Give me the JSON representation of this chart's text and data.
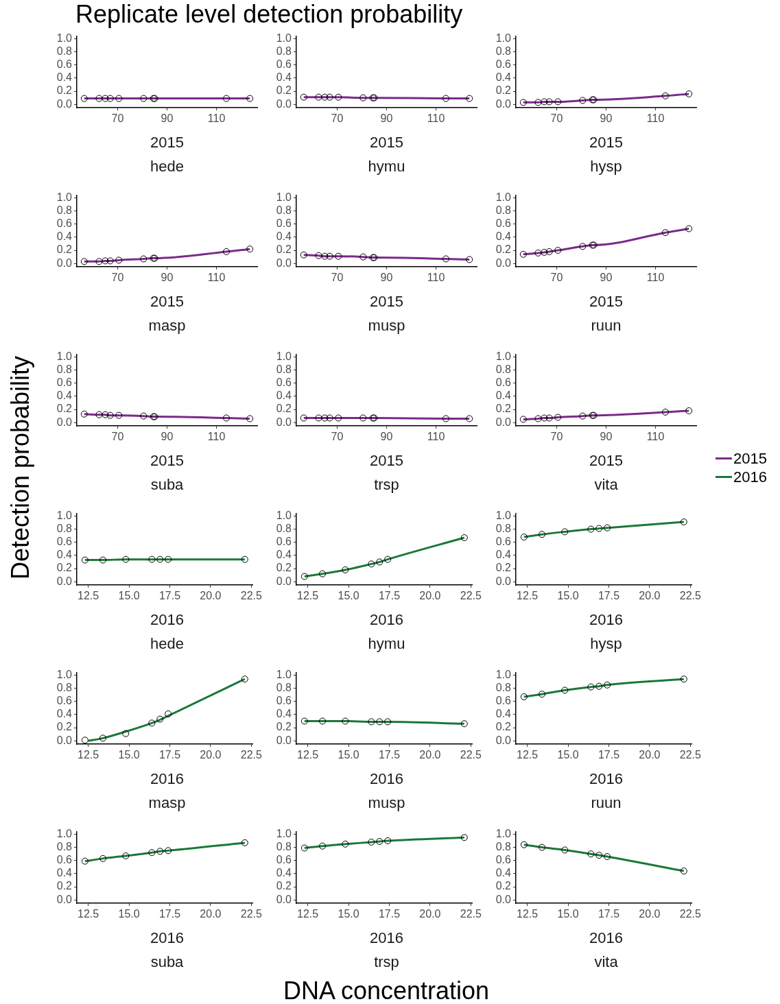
{
  "chart_data": [
    {
      "type": "line",
      "title": "Replicate level detection probability",
      "legend": "right",
      "grid": false,
      "annotations": [
        "2015",
        "hede"
      ],
      "xlim": [
        53.5,
        126.5
      ],
      "xticks": [
        70,
        90,
        110
      ],
      "ylim": [
        -0.05,
        1.04
      ],
      "yticks": [
        {
          "value": 0,
          "label": "0.0"
        },
        {
          "value": 0.2,
          "label": "0.2"
        },
        {
          "value": 0.4,
          "label": "0.4"
        },
        {
          "value": 0.6,
          "label": "0.6"
        },
        {
          "value": 0.8,
          "label": "0.8"
        },
        {
          "value": 1,
          "label": "1.0"
        }
      ],
      "x": [
        56.5,
        62.5,
        65,
        67,
        70.5,
        80.5,
        84.5,
        85,
        114,
        123.5
      ],
      "series": [
        {
          "name": "2015",
          "color": "#7b2a8a",
          "marker": "none",
          "values": [
            0.09,
            0.09,
            0.09,
            0.09,
            0.09,
            0.09,
            0.09,
            0.09,
            0.09,
            0.09
          ]
        },
        {
          "type": "scatter",
          "color": "#000000",
          "marker": "circle",
          "values": [
            0.09,
            0.09,
            0.09,
            0.09,
            0.09,
            0.09,
            0.09,
            0.09,
            0.09,
            0.09
          ]
        }
      ]
    },
    {
      "type": "line",
      "grid": false,
      "annotations": [
        "2015",
        "hymu"
      ],
      "xlim": [
        53.5,
        126.5
      ],
      "xticks": [
        70,
        90,
        110
      ],
      "ylim": [
        -0.05,
        1.04
      ],
      "yticks": [
        {
          "value": 0,
          "label": "0.0"
        },
        {
          "value": 0.2,
          "label": "0.2"
        },
        {
          "value": 0.4,
          "label": "0.4"
        },
        {
          "value": 0.6,
          "label": "0.6"
        },
        {
          "value": 0.8,
          "label": "0.8"
        },
        {
          "value": 1,
          "label": "1.0"
        }
      ],
      "x": [
        56.5,
        62.5,
        65,
        67,
        70.5,
        80.5,
        84.5,
        85,
        114,
        123.5
      ],
      "series": [
        {
          "color": "#7b2a8a",
          "marker": "none",
          "values": [
            0.11,
            0.11,
            0.11,
            0.11,
            0.11,
            0.1,
            0.1,
            0.1,
            0.09,
            0.09
          ]
        },
        {
          "type": "scatter",
          "color": "#000000",
          "marker": "circle",
          "values": [
            0.11,
            0.11,
            0.11,
            0.11,
            0.11,
            0.1,
            0.1,
            0.1,
            0.09,
            0.09
          ]
        }
      ]
    },
    {
      "type": "line",
      "grid": false,
      "annotations": [
        "2015",
        "hysp"
      ],
      "xlim": [
        53.5,
        126.5
      ],
      "xticks": [
        70,
        90,
        110
      ],
      "ylim": [
        -0.05,
        1.04
      ],
      "yticks": [
        {
          "value": 0,
          "label": "0.0"
        },
        {
          "value": 0.2,
          "label": "0.2"
        },
        {
          "value": 0.4,
          "label": "0.4"
        },
        {
          "value": 0.6,
          "label": "0.6"
        },
        {
          "value": 0.8,
          "label": "0.8"
        },
        {
          "value": 1,
          "label": "1.0"
        }
      ],
      "x": [
        56.5,
        62.5,
        65,
        67,
        70.5,
        80.5,
        84.5,
        85,
        114,
        123.5
      ],
      "series": [
        {
          "color": "#7b2a8a",
          "marker": "none",
          "values": [
            0.03,
            0.03,
            0.04,
            0.04,
            0.04,
            0.06,
            0.07,
            0.07,
            0.13,
            0.16
          ]
        },
        {
          "type": "scatter",
          "color": "#000000",
          "marker": "circle",
          "values": [
            0.03,
            0.03,
            0.04,
            0.04,
            0.04,
            0.06,
            0.07,
            0.07,
            0.13,
            0.16
          ]
        }
      ]
    },
    {
      "type": "line",
      "grid": false,
      "annotations": [
        "2015",
        "masp"
      ],
      "xlim": [
        53.5,
        126.5
      ],
      "xticks": [
        70,
        90,
        110
      ],
      "ylim": [
        -0.05,
        1.04
      ],
      "yticks": [
        {
          "value": 0,
          "label": "0.0"
        },
        {
          "value": 0.2,
          "label": "0.2"
        },
        {
          "value": 0.4,
          "label": "0.4"
        },
        {
          "value": 0.6,
          "label": "0.6"
        },
        {
          "value": 0.8,
          "label": "0.8"
        },
        {
          "value": 1,
          "label": "1.0"
        }
      ],
      "x": [
        56.5,
        62.5,
        65,
        67,
        70.5,
        80.5,
        84.5,
        85,
        114,
        123.5
      ],
      "series": [
        {
          "color": "#7b2a8a",
          "marker": "none",
          "values": [
            0.03,
            0.03,
            0.04,
            0.04,
            0.05,
            0.07,
            0.08,
            0.08,
            0.18,
            0.22
          ]
        },
        {
          "type": "scatter",
          "color": "#000000",
          "marker": "circle",
          "values": [
            0.03,
            0.03,
            0.04,
            0.04,
            0.05,
            0.07,
            0.08,
            0.08,
            0.18,
            0.22
          ]
        }
      ]
    },
    {
      "type": "line",
      "grid": false,
      "annotations": [
        "2015",
        "musp"
      ],
      "xlim": [
        53.5,
        126.5
      ],
      "xticks": [
        70,
        90,
        110
      ],
      "ylim": [
        -0.05,
        1.04
      ],
      "yticks": [
        {
          "value": 0,
          "label": "0.0"
        },
        {
          "value": 0.2,
          "label": "0.2"
        },
        {
          "value": 0.4,
          "label": "0.4"
        },
        {
          "value": 0.6,
          "label": "0.6"
        },
        {
          "value": 0.8,
          "label": "0.8"
        },
        {
          "value": 1,
          "label": "1.0"
        }
      ],
      "x": [
        56.5,
        62.5,
        65,
        67,
        70.5,
        80.5,
        84.5,
        85,
        114,
        123.5
      ],
      "series": [
        {
          "color": "#7b2a8a",
          "marker": "none",
          "values": [
            0.13,
            0.12,
            0.11,
            0.11,
            0.11,
            0.1,
            0.09,
            0.09,
            0.07,
            0.06
          ]
        },
        {
          "type": "scatter",
          "color": "#000000",
          "marker": "circle",
          "values": [
            0.13,
            0.12,
            0.11,
            0.11,
            0.11,
            0.1,
            0.09,
            0.09,
            0.07,
            0.06
          ]
        }
      ]
    },
    {
      "type": "line",
      "grid": false,
      "annotations": [
        "2015",
        "ruun"
      ],
      "xlim": [
        53.5,
        126.5
      ],
      "xticks": [
        70,
        90,
        110
      ],
      "ylim": [
        -0.05,
        1.04
      ],
      "yticks": [
        {
          "value": 0,
          "label": "0.0"
        },
        {
          "value": 0.2,
          "label": "0.2"
        },
        {
          "value": 0.4,
          "label": "0.4"
        },
        {
          "value": 0.6,
          "label": "0.6"
        },
        {
          "value": 0.8,
          "label": "0.8"
        },
        {
          "value": 1,
          "label": "1.0"
        }
      ],
      "x": [
        56.5,
        62.5,
        65,
        67,
        70.5,
        80.5,
        84.5,
        85,
        114,
        123.5
      ],
      "series": [
        {
          "color": "#7b2a8a",
          "marker": "none",
          "values": [
            0.14,
            0.16,
            0.17,
            0.18,
            0.2,
            0.26,
            0.28,
            0.28,
            0.47,
            0.53
          ]
        },
        {
          "type": "scatter",
          "color": "#000000",
          "marker": "circle",
          "values": [
            0.14,
            0.16,
            0.17,
            0.18,
            0.2,
            0.26,
            0.28,
            0.28,
            0.47,
            0.53
          ]
        }
      ]
    },
    {
      "type": "line",
      "ylabel": "Detection probability",
      "grid": false,
      "annotations": [
        "2015",
        "suba"
      ],
      "xlim": [
        53.5,
        126.5
      ],
      "xticks": [
        70,
        90,
        110
      ],
      "ylim": [
        -0.05,
        1.04
      ],
      "yticks": [
        {
          "value": 0,
          "label": "0.0"
        },
        {
          "value": 0.2,
          "label": "0.2"
        },
        {
          "value": 0.4,
          "label": "0.4"
        },
        {
          "value": 0.6,
          "label": "0.6"
        },
        {
          "value": 0.8,
          "label": "0.8"
        },
        {
          "value": 1,
          "label": "1.0"
        }
      ],
      "x": [
        56.5,
        62.5,
        65,
        67,
        70.5,
        80.5,
        84.5,
        85,
        114,
        123.5
      ],
      "series": [
        {
          "color": "#7b2a8a",
          "marker": "none",
          "values": [
            0.13,
            0.12,
            0.12,
            0.11,
            0.11,
            0.1,
            0.09,
            0.09,
            0.07,
            0.06
          ]
        },
        {
          "type": "scatter",
          "color": "#000000",
          "marker": "circle",
          "values": [
            0.13,
            0.12,
            0.12,
            0.11,
            0.11,
            0.1,
            0.09,
            0.09,
            0.07,
            0.06
          ]
        }
      ]
    },
    {
      "type": "line",
      "grid": false,
      "annotations": [
        "2015",
        "trsp"
      ],
      "xlim": [
        53.5,
        126.5
      ],
      "xticks": [
        70,
        90,
        110
      ],
      "ylim": [
        -0.05,
        1.04
      ],
      "yticks": [
        {
          "value": 0,
          "label": "0.0"
        },
        {
          "value": 0.2,
          "label": "0.2"
        },
        {
          "value": 0.4,
          "label": "0.4"
        },
        {
          "value": 0.6,
          "label": "0.6"
        },
        {
          "value": 0.8,
          "label": "0.8"
        },
        {
          "value": 1,
          "label": "1.0"
        }
      ],
      "x": [
        56.5,
        62.5,
        65,
        67,
        70.5,
        80.5,
        84.5,
        85,
        114,
        123.5
      ],
      "series": [
        {
          "color": "#7b2a8a",
          "marker": "none",
          "values": [
            0.07,
            0.07,
            0.07,
            0.07,
            0.07,
            0.07,
            0.07,
            0.07,
            0.06,
            0.06
          ]
        },
        {
          "type": "scatter",
          "color": "#000000",
          "marker": "circle",
          "values": [
            0.07,
            0.07,
            0.07,
            0.07,
            0.07,
            0.07,
            0.07,
            0.07,
            0.06,
            0.06
          ]
        }
      ]
    },
    {
      "type": "line",
      "grid": false,
      "annotations": [
        "2015",
        "vita"
      ],
      "xlim": [
        53.5,
        126.5
      ],
      "xticks": [
        70,
        90,
        110
      ],
      "ylim": [
        -0.05,
        1.04
      ],
      "yticks": [
        {
          "value": 0,
          "label": "0.0"
        },
        {
          "value": 0.2,
          "label": "0.2"
        },
        {
          "value": 0.4,
          "label": "0.4"
        },
        {
          "value": 0.6,
          "label": "0.6"
        },
        {
          "value": 0.8,
          "label": "0.8"
        },
        {
          "value": 1,
          "label": "1.0"
        }
      ],
      "x": [
        56.5,
        62.5,
        65,
        67,
        70.5,
        80.5,
        84.5,
        85,
        114,
        123.5
      ],
      "series": [
        {
          "color": "#7b2a8a",
          "marker": "none",
          "values": [
            0.05,
            0.06,
            0.07,
            0.07,
            0.08,
            0.1,
            0.11,
            0.11,
            0.16,
            0.18
          ]
        },
        {
          "type": "scatter",
          "color": "#000000",
          "marker": "circle",
          "values": [
            0.05,
            0.06,
            0.07,
            0.07,
            0.08,
            0.1,
            0.11,
            0.11,
            0.16,
            0.18
          ]
        }
      ]
    },
    {
      "type": "line",
      "grid": false,
      "annotations": [
        "2016",
        "hede"
      ],
      "xlim": [
        11.8,
        22.6
      ],
      "xticks": [
        {
          "value": 12.5,
          "label": "12.5"
        },
        {
          "value": 15,
          "label": "15.0"
        },
        {
          "value": 17.5,
          "label": "17.5"
        },
        {
          "value": 20,
          "label": "20.0"
        },
        {
          "value": 22.5,
          "label": "22.5"
        }
      ],
      "ylim": [
        -0.05,
        1.04
      ],
      "yticks": [
        {
          "value": 0,
          "label": "0.0"
        },
        {
          "value": 0.2,
          "label": "0.2"
        },
        {
          "value": 0.4,
          "label": "0.4"
        },
        {
          "value": 0.6,
          "label": "0.6"
        },
        {
          "value": 0.8,
          "label": "0.8"
        },
        {
          "value": 1,
          "label": "1.0"
        }
      ],
      "x": [
        12.3,
        13.4,
        14.8,
        16.4,
        16.9,
        17.4,
        22.1
      ],
      "series": [
        {
          "name": "2016",
          "color": "#1b7837",
          "marker": "none",
          "values": [
            0.33,
            0.33,
            0.34,
            0.34,
            0.34,
            0.34,
            0.34
          ]
        },
        {
          "type": "scatter",
          "color": "#000000",
          "marker": "circle",
          "values": [
            0.33,
            0.33,
            0.34,
            0.34,
            0.34,
            0.34,
            0.34
          ]
        }
      ]
    },
    {
      "type": "line",
      "grid": false,
      "annotations": [
        "2016",
        "hymu"
      ],
      "xlim": [
        11.8,
        22.6
      ],
      "xticks": [
        {
          "value": 12.5,
          "label": "12.5"
        },
        {
          "value": 15,
          "label": "15.0"
        },
        {
          "value": 17.5,
          "label": "17.5"
        },
        {
          "value": 20,
          "label": "20.0"
        },
        {
          "value": 22.5,
          "label": "22.5"
        }
      ],
      "ylim": [
        -0.05,
        1.04
      ],
      "yticks": [
        {
          "value": 0,
          "label": "0.0"
        },
        {
          "value": 0.2,
          "label": "0.2"
        },
        {
          "value": 0.4,
          "label": "0.4"
        },
        {
          "value": 0.6,
          "label": "0.6"
        },
        {
          "value": 0.8,
          "label": "0.8"
        },
        {
          "value": 1,
          "label": "1.0"
        }
      ],
      "x": [
        12.3,
        13.4,
        14.8,
        16.4,
        16.9,
        17.4,
        22.1
      ],
      "series": [
        {
          "color": "#1b7837",
          "marker": "none",
          "values": [
            0.08,
            0.12,
            0.18,
            0.27,
            0.3,
            0.34,
            0.67
          ]
        },
        {
          "type": "scatter",
          "color": "#000000",
          "marker": "circle",
          "values": [
            0.08,
            0.12,
            0.18,
            0.27,
            0.3,
            0.34,
            0.67
          ]
        }
      ]
    },
    {
      "type": "line",
      "grid": false,
      "annotations": [
        "2016",
        "hysp"
      ],
      "xlim": [
        11.8,
        22.6
      ],
      "xticks": [
        {
          "value": 12.5,
          "label": "12.5"
        },
        {
          "value": 15,
          "label": "15.0"
        },
        {
          "value": 17.5,
          "label": "17.5"
        },
        {
          "value": 20,
          "label": "20.0"
        },
        {
          "value": 22.5,
          "label": "22.5"
        }
      ],
      "ylim": [
        -0.05,
        1.04
      ],
      "yticks": [
        {
          "value": 0,
          "label": "0.0"
        },
        {
          "value": 0.2,
          "label": "0.2"
        },
        {
          "value": 0.4,
          "label": "0.4"
        },
        {
          "value": 0.6,
          "label": "0.6"
        },
        {
          "value": 0.8,
          "label": "0.8"
        },
        {
          "value": 1,
          "label": "1.0"
        }
      ],
      "x": [
        12.3,
        13.4,
        14.8,
        16.4,
        16.9,
        17.4,
        22.1
      ],
      "series": [
        {
          "color": "#1b7837",
          "marker": "none",
          "values": [
            0.68,
            0.72,
            0.76,
            0.8,
            0.81,
            0.82,
            0.91
          ]
        },
        {
          "type": "scatter",
          "color": "#000000",
          "marker": "circle",
          "values": [
            0.68,
            0.72,
            0.76,
            0.8,
            0.81,
            0.82,
            0.91
          ]
        }
      ]
    },
    {
      "type": "line",
      "grid": false,
      "annotations": [
        "2016",
        "masp"
      ],
      "xlim": [
        11.8,
        22.6
      ],
      "xticks": [
        {
          "value": 12.5,
          "label": "12.5"
        },
        {
          "value": 15,
          "label": "15.0"
        },
        {
          "value": 17.5,
          "label": "17.5"
        },
        {
          "value": 20,
          "label": "20.0"
        },
        {
          "value": 22.5,
          "label": "22.5"
        }
      ],
      "ylim": [
        -0.05,
        1.04
      ],
      "yticks": [
        {
          "value": 0,
          "label": "0.0"
        },
        {
          "value": 0.2,
          "label": "0.2"
        },
        {
          "value": 0.4,
          "label": "0.4"
        },
        {
          "value": 0.6,
          "label": "0.6"
        },
        {
          "value": 0.8,
          "label": "0.8"
        },
        {
          "value": 1,
          "label": "1.0"
        }
      ],
      "x": [
        12.3,
        13.4,
        14.8,
        16.4,
        16.9,
        17.4,
        22.1
      ],
      "series": [
        {
          "color": "#1b7837",
          "marker": "none",
          "x": [
            12.5,
            13.4,
            14.8,
            16.4,
            16.9,
            17.4,
            22.1
          ],
          "values": [
            0,
            0.04,
            0.14,
            0.27,
            0.32,
            0.38,
            0.94
          ]
        },
        {
          "type": "scatter",
          "color": "#000000",
          "marker": "circle",
          "values": [
            0.01,
            0.04,
            0.11,
            0.27,
            0.33,
            0.41,
            0.94
          ]
        }
      ]
    },
    {
      "type": "line",
      "grid": false,
      "annotations": [
        "2016",
        "musp"
      ],
      "xlim": [
        11.8,
        22.6
      ],
      "xticks": [
        {
          "value": 12.5,
          "label": "12.5"
        },
        {
          "value": 15,
          "label": "15.0"
        },
        {
          "value": 17.5,
          "label": "17.5"
        },
        {
          "value": 20,
          "label": "20.0"
        },
        {
          "value": 22.5,
          "label": "22.5"
        }
      ],
      "ylim": [
        -0.05,
        1.04
      ],
      "yticks": [
        {
          "value": 0,
          "label": "0.0"
        },
        {
          "value": 0.2,
          "label": "0.2"
        },
        {
          "value": 0.4,
          "label": "0.4"
        },
        {
          "value": 0.6,
          "label": "0.6"
        },
        {
          "value": 0.8,
          "label": "0.8"
        },
        {
          "value": 1,
          "label": "1.0"
        }
      ],
      "x": [
        12.3,
        13.4,
        14.8,
        16.4,
        16.9,
        17.4,
        22.1
      ],
      "series": [
        {
          "color": "#1b7837",
          "marker": "none",
          "values": [
            0.3,
            0.3,
            0.3,
            0.29,
            0.29,
            0.29,
            0.26
          ]
        },
        {
          "type": "scatter",
          "color": "#000000",
          "marker": "circle",
          "values": [
            0.3,
            0.3,
            0.3,
            0.29,
            0.29,
            0.29,
            0.26
          ]
        }
      ]
    },
    {
      "type": "line",
      "grid": false,
      "annotations": [
        "2016",
        "ruun"
      ],
      "xlim": [
        11.8,
        22.6
      ],
      "xticks": [
        {
          "value": 12.5,
          "label": "12.5"
        },
        {
          "value": 15,
          "label": "15.0"
        },
        {
          "value": 17.5,
          "label": "17.5"
        },
        {
          "value": 20,
          "label": "20.0"
        },
        {
          "value": 22.5,
          "label": "22.5"
        }
      ],
      "ylim": [
        -0.05,
        1.04
      ],
      "yticks": [
        {
          "value": 0,
          "label": "0.0"
        },
        {
          "value": 0.2,
          "label": "0.2"
        },
        {
          "value": 0.4,
          "label": "0.4"
        },
        {
          "value": 0.6,
          "label": "0.6"
        },
        {
          "value": 0.8,
          "label": "0.8"
        },
        {
          "value": 1,
          "label": "1.0"
        }
      ],
      "x": [
        12.3,
        13.4,
        14.8,
        16.4,
        16.9,
        17.4,
        22.1
      ],
      "series": [
        {
          "color": "#1b7837",
          "marker": "none",
          "values": [
            0.67,
            0.71,
            0.77,
            0.82,
            0.83,
            0.85,
            0.94
          ]
        },
        {
          "type": "scatter",
          "color": "#000000",
          "marker": "circle",
          "values": [
            0.67,
            0.71,
            0.77,
            0.82,
            0.83,
            0.85,
            0.94
          ]
        }
      ]
    },
    {
      "type": "line",
      "grid": false,
      "annotations": [
        "2016",
        "suba"
      ],
      "xlim": [
        11.8,
        22.6
      ],
      "xticks": [
        {
          "value": 12.5,
          "label": "12.5"
        },
        {
          "value": 15,
          "label": "15.0"
        },
        {
          "value": 17.5,
          "label": "17.5"
        },
        {
          "value": 20,
          "label": "20.0"
        },
        {
          "value": 22.5,
          "label": "22.5"
        }
      ],
      "ylim": [
        -0.05,
        1.04
      ],
      "yticks": [
        {
          "value": 0,
          "label": "0.0"
        },
        {
          "value": 0.2,
          "label": "0.2"
        },
        {
          "value": 0.4,
          "label": "0.4"
        },
        {
          "value": 0.6,
          "label": "0.6"
        },
        {
          "value": 0.8,
          "label": "0.8"
        },
        {
          "value": 1,
          "label": "1.0"
        }
      ],
      "x": [
        12.3,
        13.4,
        14.8,
        16.4,
        16.9,
        17.4,
        22.1
      ],
      "series": [
        {
          "color": "#1b7837",
          "marker": "none",
          "values": [
            0.59,
            0.63,
            0.67,
            0.72,
            0.74,
            0.75,
            0.87
          ]
        },
        {
          "type": "scatter",
          "color": "#000000",
          "marker": "circle",
          "values": [
            0.59,
            0.63,
            0.67,
            0.72,
            0.74,
            0.75,
            0.87
          ]
        }
      ]
    },
    {
      "type": "line",
      "xlabel": "DNA concentration",
      "grid": false,
      "annotations": [
        "2016",
        "trsp"
      ],
      "xlim": [
        11.8,
        22.6
      ],
      "xticks": [
        {
          "value": 12.5,
          "label": "12.5"
        },
        {
          "value": 15,
          "label": "15.0"
        },
        {
          "value": 17.5,
          "label": "17.5"
        },
        {
          "value": 20,
          "label": "20.0"
        },
        {
          "value": 22.5,
          "label": "22.5"
        }
      ],
      "ylim": [
        -0.05,
        1.04
      ],
      "yticks": [
        {
          "value": 0,
          "label": "0.0"
        },
        {
          "value": 0.2,
          "label": "0.2"
        },
        {
          "value": 0.4,
          "label": "0.4"
        },
        {
          "value": 0.6,
          "label": "0.6"
        },
        {
          "value": 0.8,
          "label": "0.8"
        },
        {
          "value": 1,
          "label": "1.0"
        }
      ],
      "x": [
        12.3,
        13.4,
        14.8,
        16.4,
        16.9,
        17.4,
        22.1
      ],
      "series": [
        {
          "color": "#1b7837",
          "marker": "none",
          "values": [
            0.79,
            0.82,
            0.85,
            0.88,
            0.89,
            0.9,
            0.95
          ]
        },
        {
          "type": "scatter",
          "color": "#000000",
          "marker": "circle",
          "values": [
            0.79,
            0.82,
            0.85,
            0.88,
            0.89,
            0.9,
            0.95
          ]
        }
      ]
    },
    {
      "type": "line",
      "grid": false,
      "annotations": [
        "2016",
        "vita"
      ],
      "xlim": [
        11.8,
        22.6
      ],
      "xticks": [
        {
          "value": 12.5,
          "label": "12.5"
        },
        {
          "value": 15,
          "label": "15.0"
        },
        {
          "value": 17.5,
          "label": "17.5"
        },
        {
          "value": 20,
          "label": "20.0"
        },
        {
          "value": 22.5,
          "label": "22.5"
        }
      ],
      "ylim": [
        -0.05,
        1.04
      ],
      "yticks": [
        {
          "value": 0,
          "label": "0.0"
        },
        {
          "value": 0.2,
          "label": "0.2"
        },
        {
          "value": 0.4,
          "label": "0.4"
        },
        {
          "value": 0.6,
          "label": "0.6"
        },
        {
          "value": 0.8,
          "label": "0.8"
        },
        {
          "value": 1,
          "label": "1.0"
        }
      ],
      "x": [
        12.3,
        13.4,
        14.8,
        16.4,
        16.9,
        17.4,
        22.1
      ],
      "series": [
        {
          "color": "#1b7837",
          "marker": "none",
          "values": [
            0.84,
            0.8,
            0.76,
            0.7,
            0.68,
            0.66,
            0.44
          ]
        },
        {
          "type": "scatter",
          "color": "#000000",
          "marker": "circle",
          "values": [
            0.84,
            0.8,
            0.76,
            0.7,
            0.68,
            0.66,
            0.44
          ]
        }
      ]
    }
  ]
}
